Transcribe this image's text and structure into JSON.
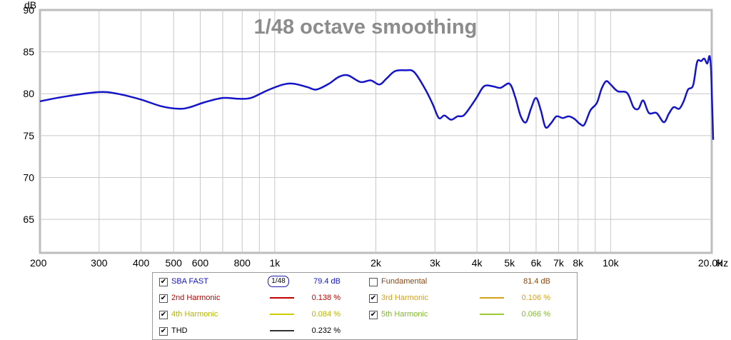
{
  "chart_data": {
    "type": "line",
    "title": "1/48 octave smoothing",
    "ylabel": "dB",
    "xlabel": "Hz",
    "x_scale": "log",
    "xlim": [
      200,
      20000
    ],
    "ylim": [
      61,
      90
    ],
    "y_ticks": [
      65,
      70,
      75,
      80,
      85,
      90
    ],
    "x_ticks": [
      {
        "value": 200,
        "label": "200"
      },
      {
        "value": 300,
        "label": "300"
      },
      {
        "value": 400,
        "label": "400"
      },
      {
        "value": 500,
        "label": "500"
      },
      {
        "value": 600,
        "label": "600"
      },
      {
        "value": 800,
        "label": "800"
      },
      {
        "value": 1000,
        "label": "1k"
      },
      {
        "value": 2000,
        "label": "2k"
      },
      {
        "value": 3000,
        "label": "3k"
      },
      {
        "value": 4000,
        "label": "4k"
      },
      {
        "value": 5000,
        "label": "5k"
      },
      {
        "value": 6000,
        "label": "6k"
      },
      {
        "value": 7000,
        "label": "7k"
      },
      {
        "value": 8000,
        "label": "8k"
      },
      {
        "value": 10000,
        "label": "10k"
      },
      {
        "value": 20000,
        "label": "20.0k"
      }
    ],
    "minor_grid_x": [
      700,
      900,
      9000
    ],
    "grid": true,
    "series": [
      {
        "name": "SBA FAST",
        "color": "#1414c8",
        "points": [
          [
            200,
            79.1
          ],
          [
            240,
            79.7
          ],
          [
            300,
            80.2
          ],
          [
            340,
            80.0
          ],
          [
            400,
            79.3
          ],
          [
            460,
            78.5
          ],
          [
            520,
            78.2
          ],
          [
            560,
            78.4
          ],
          [
            620,
            79.0
          ],
          [
            700,
            79.5
          ],
          [
            780,
            79.4
          ],
          [
            850,
            79.5
          ],
          [
            950,
            80.4
          ],
          [
            1060,
            81.1
          ],
          [
            1140,
            81.2
          ],
          [
            1250,
            80.8
          ],
          [
            1330,
            80.5
          ],
          [
            1450,
            81.2
          ],
          [
            1550,
            82.0
          ],
          [
            1650,
            82.2
          ],
          [
            1800,
            81.4
          ],
          [
            1930,
            81.6
          ],
          [
            2050,
            81.1
          ],
          [
            2150,
            81.8
          ],
          [
            2280,
            82.7
          ],
          [
            2450,
            82.8
          ],
          [
            2600,
            82.6
          ],
          [
            2800,
            80.6
          ],
          [
            2950,
            78.8
          ],
          [
            3080,
            77.1
          ],
          [
            3200,
            77.4
          ],
          [
            3350,
            76.9
          ],
          [
            3500,
            77.3
          ],
          [
            3650,
            77.4
          ],
          [
            3850,
            78.6
          ],
          [
            4000,
            79.6
          ],
          [
            4200,
            80.9
          ],
          [
            4450,
            80.9
          ],
          [
            4700,
            80.7
          ],
          [
            5000,
            81.2
          ],
          [
            5200,
            79.6
          ],
          [
            5400,
            77.3
          ],
          [
            5600,
            76.6
          ],
          [
            5800,
            78.3
          ],
          [
            6000,
            79.5
          ],
          [
            6200,
            78.0
          ],
          [
            6400,
            76.0
          ],
          [
            6650,
            76.5
          ],
          [
            6900,
            77.3
          ],
          [
            7200,
            77.1
          ],
          [
            7500,
            77.3
          ],
          [
            7800,
            77.0
          ],
          [
            8100,
            76.4
          ],
          [
            8350,
            76.3
          ],
          [
            8700,
            78.0
          ],
          [
            9100,
            78.9
          ],
          [
            9400,
            80.6
          ],
          [
            9700,
            81.5
          ],
          [
            10000,
            81.1
          ],
          [
            10500,
            80.3
          ],
          [
            11200,
            80.1
          ],
          [
            11700,
            78.4
          ],
          [
            12100,
            78.2
          ],
          [
            12500,
            79.2
          ],
          [
            13000,
            77.7
          ],
          [
            13700,
            77.7
          ],
          [
            14400,
            76.6
          ],
          [
            14900,
            77.6
          ],
          [
            15400,
            78.4
          ],
          [
            16000,
            78.2
          ],
          [
            16500,
            79.1
          ],
          [
            17000,
            80.5
          ],
          [
            17600,
            81.0
          ],
          [
            18100,
            83.8
          ],
          [
            18600,
            83.9
          ],
          [
            19000,
            84.2
          ],
          [
            19400,
            83.6
          ],
          [
            19700,
            84.5
          ],
          [
            19900,
            83.0
          ],
          [
            20050,
            79.0
          ],
          [
            20200,
            74.5
          ]
        ]
      }
    ],
    "legend": [
      {
        "name": "SBA FAST",
        "checked": true,
        "color": "#1414c8",
        "smoothing": "1/48",
        "value": "79.4 dB"
      },
      {
        "name": "Fundamental",
        "checked": false,
        "color": "#8b4513",
        "value": "81.4 dB"
      },
      {
        "name": "2nd Harmonic",
        "checked": true,
        "color": "#c00000",
        "value": "0.138 %"
      },
      {
        "name": "3rd Harmonic",
        "checked": true,
        "color": "#d4a017",
        "value": "0.106 %"
      },
      {
        "name": "4th Harmonic",
        "checked": true,
        "color": "#cccc00",
        "value": "0.084 %"
      },
      {
        "name": "5th Harmonic",
        "checked": true,
        "color": "#99cc33",
        "value": "0.066 %"
      },
      {
        "name": "THD",
        "checked": true,
        "color": "#333333",
        "value": "0.232 %"
      }
    ]
  }
}
